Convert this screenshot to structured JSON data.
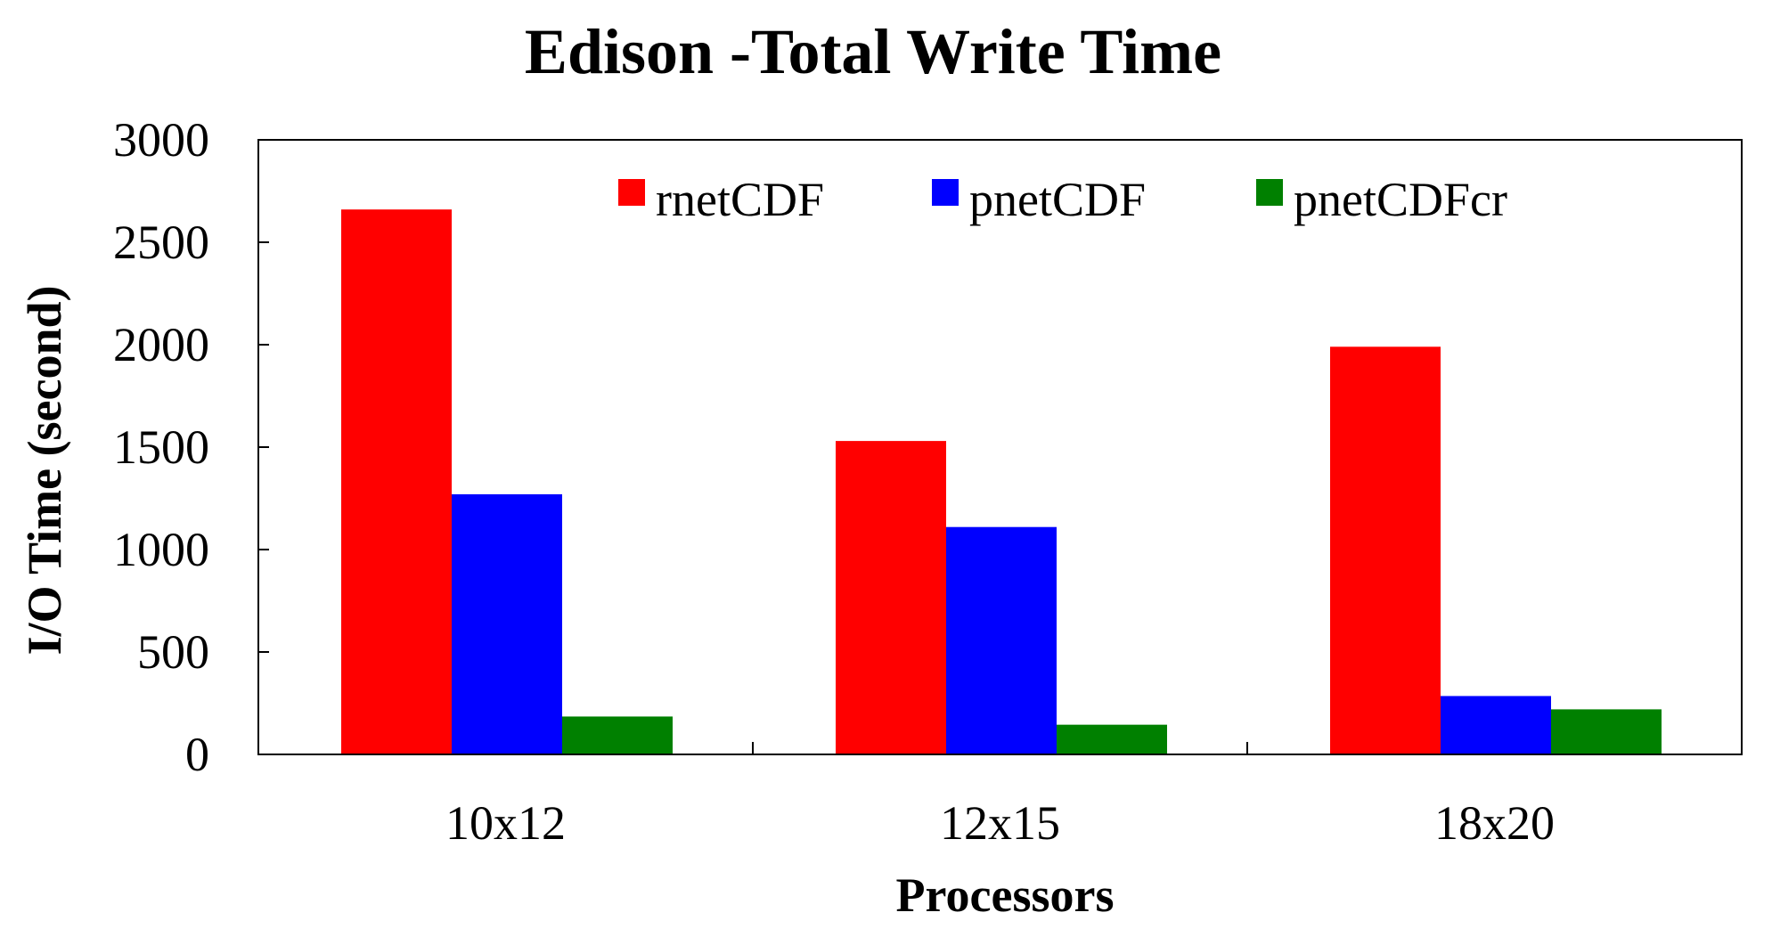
{
  "chart_data": {
    "type": "bar",
    "title": "Edison -Total Write Time",
    "xlabel": "Processors",
    "ylabel": "I/O Time (second)",
    "categories": [
      "10x12",
      "12x15",
      "18x20"
    ],
    "series": [
      {
        "name": "rnetCDF",
        "color": "#ff0000",
        "values": [
          2660,
          1530,
          1990
        ]
      },
      {
        "name": "pnetCDF",
        "color": "#0000ff",
        "values": [
          1270,
          1110,
          285
        ]
      },
      {
        "name": "pnetCDFcr",
        "color": "#008000",
        "values": [
          185,
          145,
          220
        ]
      }
    ],
    "ylim": [
      0,
      3000
    ],
    "yticks": [
      0,
      500,
      1000,
      1500,
      2000,
      2500,
      3000
    ],
    "grid": false,
    "legend_position": "top"
  }
}
